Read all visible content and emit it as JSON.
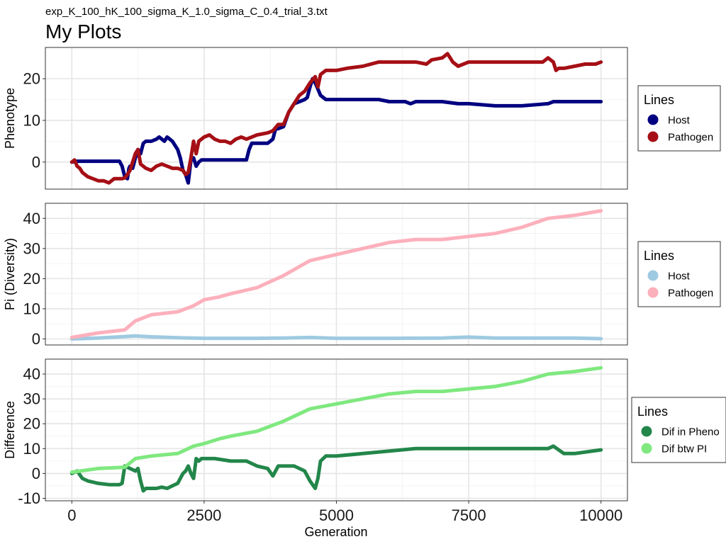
{
  "figure": {
    "subtitle": "exp_K_100_hK_100_sigma_K_1.0_sigma_C_0.4_trial_3.txt",
    "title": "My Plots",
    "xlabel": "Generation"
  },
  "chart_data": [
    {
      "type": "line",
      "ylabel": "Phenotype",
      "xlim": [
        -500,
        10500
      ],
      "ylim": [
        -6.5,
        27.5
      ],
      "xticks": [
        "0",
        "2500",
        "5000",
        "7500",
        "10000"
      ],
      "yticks": [
        "0",
        "10",
        "20"
      ],
      "yticks_values": [
        0,
        10,
        20
      ],
      "grid": true,
      "legend": {
        "title": "Lines",
        "placement": "right"
      },
      "series": [
        {
          "name": "Host",
          "color": "#000080",
          "x": [
            0,
            100,
            200,
            900,
            950,
            1000,
            1050,
            1080,
            1100,
            1150,
            1200,
            1250,
            1300,
            1350,
            1400,
            1500,
            1600,
            1650,
            1700,
            1750,
            1800,
            1850,
            1900,
            2000,
            2050,
            2100,
            2150,
            2200,
            2250,
            2300,
            2350,
            2400,
            2450,
            2500,
            3300,
            3350,
            3400,
            3700,
            3800,
            3850,
            3900,
            4000,
            4100,
            4200,
            4300,
            4400,
            4450,
            4500,
            4550,
            4600,
            4650,
            4700,
            4800,
            4900,
            5000,
            5500,
            5800,
            6000,
            6300,
            6400,
            6500,
            7000,
            7300,
            7500,
            8000,
            8500,
            9000,
            9100,
            9300,
            9500,
            10000
          ],
          "y": [
            0,
            0.2,
            0.2,
            0.2,
            -1,
            -3.5,
            -4,
            -1.5,
            -1,
            -1.5,
            1,
            3,
            2,
            4.5,
            5,
            5,
            5.5,
            6,
            5.5,
            5,
            6,
            5.5,
            5,
            3,
            1,
            -2,
            -3,
            -5,
            0.5,
            1,
            -1,
            0,
            0.5,
            0.5,
            0.5,
            3,
            4.5,
            4.5,
            5.5,
            8,
            8,
            8.5,
            12,
            14,
            14.5,
            15,
            15.5,
            18,
            20,
            19,
            17.5,
            16,
            15,
            15,
            15,
            15,
            15,
            14.5,
            14.5,
            14,
            14.5,
            14.5,
            14,
            14,
            13.5,
            13.5,
            14,
            14.5,
            14.5,
            14.5,
            14.5
          ]
        },
        {
          "name": "Pathogen",
          "color": "#a50f15",
          "x": [
            0,
            50,
            100,
            150,
            200,
            300,
            400,
            500,
            600,
            700,
            800,
            900,
            950,
            1000,
            1050,
            1100,
            1150,
            1200,
            1250,
            1300,
            1400,
            1500,
            1600,
            1700,
            1800,
            1900,
            2000,
            2100,
            2150,
            2200,
            2250,
            2300,
            2350,
            2400,
            2500,
            2600,
            2700,
            2800,
            2900,
            3000,
            3100,
            3200,
            3300,
            3400,
            3500,
            3700,
            3800,
            3900,
            4000,
            4100,
            4200,
            4300,
            4400,
            4500,
            4600,
            4650,
            4700,
            4800,
            4900,
            5000,
            5200,
            5500,
            5800,
            6000,
            6200,
            6500,
            6700,
            6800,
            7000,
            7100,
            7200,
            7300,
            7500,
            7700,
            8000,
            8500,
            8900,
            9000,
            9100,
            9150,
            9200,
            9300,
            9500,
            9700,
            9900,
            10000
          ],
          "y": [
            0,
            0.5,
            -1,
            -1.5,
            -2.5,
            -3.5,
            -4,
            -4.5,
            -4.5,
            -5,
            -4,
            -4,
            -4,
            -3.8,
            -3,
            -2,
            0,
            2,
            3,
            -0.5,
            -1.5,
            -2,
            -1,
            -0.5,
            -1,
            -1.5,
            -1.5,
            -2,
            -3,
            -2.5,
            1,
            5,
            2,
            5,
            6,
            6.5,
            5.5,
            5,
            5,
            4.5,
            5.5,
            6,
            5.5,
            6,
            6.5,
            7,
            7.5,
            9,
            9,
            12,
            14,
            16,
            17,
            19,
            20.5,
            18,
            21,
            22,
            22,
            22,
            22.5,
            23,
            24,
            24,
            24,
            24,
            23.5,
            24.5,
            25,
            26,
            24,
            23,
            24,
            24,
            24,
            24,
            24,
            25,
            24,
            22,
            22.5,
            22.5,
            23,
            23.5,
            23.5,
            24
          ]
        }
      ]
    },
    {
      "type": "line",
      "ylabel": "Pi (Diversity)",
      "xlim": [
        -500,
        10500
      ],
      "ylim": [
        -2,
        45
      ],
      "xticks": [
        "0",
        "2500",
        "5000",
        "7500",
        "10000"
      ],
      "yticks": [
        "0",
        "10",
        "20",
        "30",
        "40"
      ],
      "yticks_values": [
        0,
        10,
        20,
        30,
        40
      ],
      "grid": true,
      "legend": {
        "title": "Lines",
        "placement": "right"
      },
      "series": [
        {
          "name": "Host",
          "color": "#9ecae1",
          "x": [
            0,
            500,
            1000,
            1200,
            1500,
            2000,
            2500,
            3000,
            3500,
            4000,
            4500,
            5000,
            6000,
            7000,
            7500,
            8000,
            9000,
            9500,
            10000
          ],
          "y": [
            0,
            0.3,
            0.8,
            1,
            0.7,
            0.4,
            0.2,
            0.2,
            0.2,
            0.3,
            0.5,
            0.2,
            0.2,
            0.3,
            0.6,
            0.3,
            0.3,
            0.3,
            0.1
          ]
        },
        {
          "name": "Pathogen",
          "color": "#fcb0bc",
          "x": [
            0,
            500,
            1000,
            1200,
            1500,
            2000,
            2300,
            2500,
            2800,
            3000,
            3500,
            4000,
            4500,
            5000,
            5500,
            6000,
            6500,
            7000,
            7500,
            8000,
            8500,
            9000,
            9500,
            10000
          ],
          "y": [
            0.5,
            2,
            3,
            6,
            8,
            9,
            11,
            13,
            14,
            15,
            17,
            21,
            26,
            28,
            30,
            32,
            33,
            33,
            34,
            35,
            37,
            40,
            41,
            42.5
          ]
        }
      ]
    },
    {
      "type": "line",
      "ylabel": "Difference",
      "xlim": [
        -500,
        10500
      ],
      "ylim": [
        -11,
        46
      ],
      "xticks": [
        "0",
        "2500",
        "5000",
        "7500",
        "10000"
      ],
      "yticks": [
        "-10",
        "0",
        "10",
        "20",
        "30",
        "40"
      ],
      "yticks_values": [
        -10,
        0,
        10,
        20,
        30,
        40
      ],
      "grid": true,
      "legend": {
        "title": "Lines",
        "placement": "right"
      },
      "series": [
        {
          "name": "Dif in Pheno",
          "color": "#23864a",
          "x": [
            0,
            100,
            200,
            300,
            500,
            700,
            900,
            950,
            1000,
            1100,
            1200,
            1250,
            1300,
            1350,
            1400,
            1500,
            1600,
            1700,
            1800,
            1900,
            2000,
            2100,
            2150,
            2200,
            2250,
            2300,
            2350,
            2400,
            2450,
            2500,
            2700,
            3000,
            3300,
            3500,
            3700,
            3800,
            3900,
            4000,
            4200,
            4400,
            4500,
            4600,
            4650,
            4700,
            4800,
            5000,
            5500,
            6000,
            6500,
            7000,
            7500,
            8000,
            8500,
            9000,
            9100,
            9300,
            9500,
            10000
          ],
          "y": [
            0,
            1,
            -2,
            -3,
            -4,
            -4.5,
            -4.5,
            -4,
            3,
            2,
            1,
            2,
            -3,
            -7,
            -6,
            -6,
            -6,
            -5.5,
            -6,
            -5,
            -4,
            0,
            1,
            3,
            0,
            -2,
            6,
            5,
            6,
            6,
            6,
            5,
            5,
            3,
            2,
            -1,
            3,
            3,
            3,
            1,
            -3,
            -6,
            -2,
            5,
            7,
            7,
            8,
            9,
            10,
            10,
            10,
            10,
            10,
            10,
            11,
            8,
            8,
            9.5
          ]
        },
        {
          "name": "Dif btw PI",
          "color": "#7fe87f",
          "x": [
            0,
            500,
            1000,
            1200,
            1500,
            2000,
            2300,
            2500,
            2800,
            3000,
            3500,
            4000,
            4500,
            5000,
            5500,
            6000,
            6500,
            7000,
            7500,
            8000,
            8500,
            9000,
            9500,
            10000
          ],
          "y": [
            0.5,
            2,
            2.5,
            6,
            7,
            8,
            11,
            12,
            14,
            15,
            17,
            21,
            26,
            28,
            30,
            32,
            33,
            33,
            34,
            35,
            37,
            40,
            41,
            42.5
          ]
        }
      ]
    }
  ]
}
